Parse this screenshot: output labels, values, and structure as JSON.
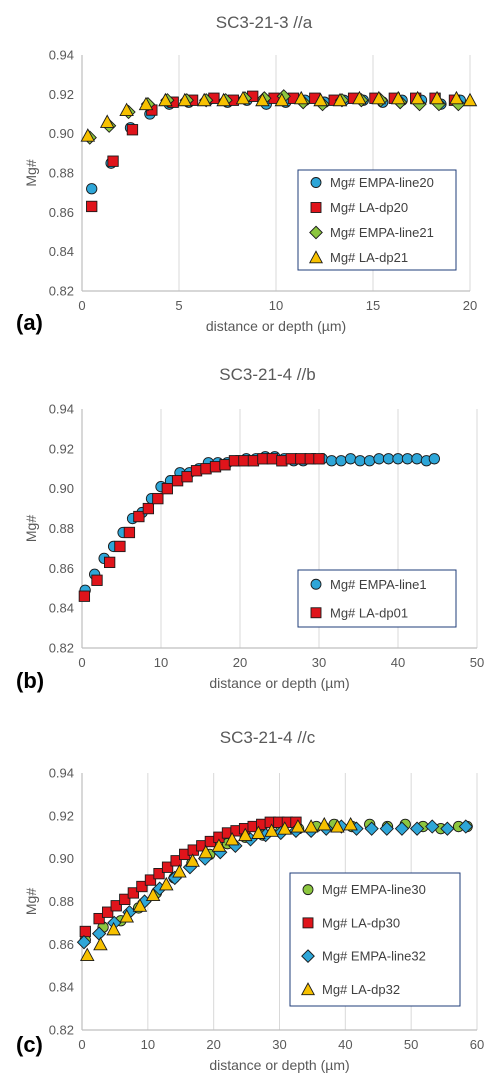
{
  "colors": {
    "grid": "#d9d9d9",
    "axis": "#bfbfbf",
    "empa_circle": "#2ea6d8",
    "la_square": "#e0141b",
    "empa_diamond": "#8cc63f",
    "la_triangle": "#f7c100",
    "legend_border": "#1f3d7a"
  },
  "chart_data": [
    {
      "type": "scatter",
      "title": "SC3-21-3  //a",
      "panel_label": "(a)",
      "xlabel": "distance or depth (µm)",
      "ylabel": "Mg#",
      "xlim": [
        0,
        20
      ],
      "ylim": [
        0.82,
        0.94
      ],
      "xticks": [
        "0",
        "5",
        "10",
        "15",
        "20"
      ],
      "yticks": [
        "0.82",
        "0.84",
        "0.86",
        "0.88",
        "0.90",
        "0.92",
        "0.94"
      ],
      "grid": "vertical",
      "legend_position": "right",
      "series": [
        {
          "name": "Mg# EMPA-line20",
          "marker": "circle",
          "color": "#2ea6d8",
          "x": [
            0.5,
            1.5,
            2.5,
            3.5,
            4.5,
            5.5,
            6.5,
            7.5,
            8.5,
            9.5,
            10.5,
            11.5,
            12.5,
            13.5,
            14.5,
            15.5,
            16.5,
            17.5,
            18.5,
            19.5
          ],
          "y": [
            0.872,
            0.885,
            0.903,
            0.91,
            0.915,
            0.916,
            0.917,
            0.916,
            0.917,
            0.915,
            0.916,
            0.917,
            0.916,
            0.917,
            0.917,
            0.916,
            0.917,
            0.917,
            0.915,
            0.917
          ]
        },
        {
          "name": "Mg# LA-dp20",
          "marker": "square",
          "color": "#e0141b",
          "x": [
            0.5,
            1.6,
            2.6,
            3.6,
            4.7,
            5.7,
            6.8,
            7.8,
            8.8,
            9.9,
            10.9,
            12.0,
            13.0,
            14.0,
            15.1,
            16.1,
            17.2,
            18.2,
            19.2
          ],
          "y": [
            0.863,
            0.886,
            0.902,
            0.912,
            0.916,
            0.917,
            0.918,
            0.917,
            0.919,
            0.918,
            0.918,
            0.918,
            0.917,
            0.918,
            0.918,
            0.918,
            0.918,
            0.918,
            0.917
          ]
        },
        {
          "name": "Mg# EMPA-line21",
          "marker": "diamond",
          "color": "#8cc63f",
          "x": [
            0.4,
            1.4,
            2.4,
            3.4,
            4.4,
            5.4,
            6.4,
            7.4,
            8.4,
            9.4,
            10.4,
            11.4,
            12.4,
            13.4,
            14.4,
            15.4,
            16.4,
            17.4,
            18.4,
            19.4
          ],
          "y": [
            0.898,
            0.904,
            0.911,
            0.915,
            0.917,
            0.917,
            0.917,
            0.917,
            0.918,
            0.918,
            0.919,
            0.916,
            0.915,
            0.917,
            0.917,
            0.917,
            0.916,
            0.915,
            0.915,
            0.915
          ]
        },
        {
          "name": "Mg# LA-dp21",
          "marker": "triangle",
          "color": "#f7c100",
          "x": [
            0.3,
            1.3,
            2.3,
            3.3,
            4.3,
            5.3,
            6.3,
            7.3,
            8.3,
            9.3,
            10.3,
            11.3,
            12.3,
            13.3,
            14.3,
            15.3,
            16.3,
            17.3,
            18.3,
            19.3,
            20.0
          ],
          "y": [
            0.899,
            0.906,
            0.912,
            0.915,
            0.917,
            0.917,
            0.917,
            0.917,
            0.918,
            0.917,
            0.917,
            0.918,
            0.917,
            0.917,
            0.918,
            0.918,
            0.918,
            0.918,
            0.918,
            0.918,
            0.917
          ]
        }
      ]
    },
    {
      "type": "scatter",
      "title": "SC3-21-4  //b",
      "panel_label": "(b)",
      "xlabel": "distance or depth (µm)",
      "ylabel": "Mg#",
      "xlim": [
        0,
        50
      ],
      "ylim": [
        0.82,
        0.94
      ],
      "xticks": [
        "0",
        "10",
        "20",
        "30",
        "40",
        "50"
      ],
      "yticks": [
        "0.82",
        "0.84",
        "0.86",
        "0.88",
        "0.90",
        "0.92",
        "0.94"
      ],
      "grid": "vertical",
      "legend_position": "right",
      "series": [
        {
          "name": "Mg# EMPA-line1",
          "marker": "circle",
          "color": "#2ea6d8",
          "x": [
            0.4,
            1.6,
            2.8,
            4.0,
            5.2,
            6.4,
            7.6,
            8.8,
            10.0,
            11.2,
            12.4,
            13.6,
            14.8,
            16.0,
            17.2,
            18.4,
            19.6,
            20.8,
            22.0,
            23.2,
            24.4,
            25.6,
            26.8,
            28.0,
            29.2,
            30.4,
            31.6,
            32.8,
            34.0,
            35.2,
            36.4,
            37.6,
            38.8,
            40.0,
            41.2,
            42.4,
            43.6,
            44.6
          ],
          "y": [
            0.849,
            0.857,
            0.865,
            0.871,
            0.878,
            0.885,
            0.888,
            0.895,
            0.901,
            0.904,
            0.908,
            0.908,
            0.91,
            0.913,
            0.913,
            0.913,
            0.914,
            0.915,
            0.915,
            0.916,
            0.916,
            0.915,
            0.914,
            0.914,
            0.915,
            0.915,
            0.914,
            0.914,
            0.915,
            0.914,
            0.914,
            0.915,
            0.915,
            0.915,
            0.915,
            0.915,
            0.914,
            0.915
          ]
        },
        {
          "name": "Mg# LA-dp01",
          "marker": "square",
          "color": "#e0141b",
          "x": [
            0.3,
            1.9,
            3.5,
            4.8,
            6.0,
            7.2,
            8.4,
            9.6,
            10.8,
            12.1,
            13.3,
            14.5,
            15.7,
            16.9,
            18.1,
            19.3,
            20.5,
            21.7,
            22.9,
            24.1,
            25.3,
            26.5,
            27.7,
            28.9,
            30.0
          ],
          "y": [
            0.846,
            0.854,
            0.863,
            0.871,
            0.878,
            0.886,
            0.89,
            0.895,
            0.9,
            0.904,
            0.906,
            0.909,
            0.91,
            0.911,
            0.912,
            0.914,
            0.914,
            0.914,
            0.915,
            0.915,
            0.914,
            0.915,
            0.915,
            0.915,
            0.915
          ]
        }
      ]
    },
    {
      "type": "scatter",
      "title": "SC3-21-4  //c",
      "panel_label": "(c)",
      "xlabel": "distance or depth (µm)",
      "ylabel": "Mg#",
      "xlim": [
        0,
        60
      ],
      "ylim": [
        0.82,
        0.94
      ],
      "xticks": [
        "0",
        "10",
        "20",
        "30",
        "40",
        "50",
        "60"
      ],
      "yticks": [
        "0.82",
        "0.84",
        "0.86",
        "0.88",
        "0.90",
        "0.92",
        "0.94"
      ],
      "grid": "vertical",
      "legend_position": "right",
      "series": [
        {
          "name": "Mg# EMPA-line30",
          "marker": "circle",
          "color": "#8cc63f",
          "x": [
            0.5,
            3.2,
            5.9,
            8.6,
            11.3,
            14.0,
            16.7,
            19.4,
            22.1,
            24.8,
            27.5,
            30.2,
            32.9,
            35.6,
            38.3,
            41.0,
            43.7,
            46.4,
            49.1,
            51.8,
            54.5,
            57.2,
            58.5
          ],
          "y": [
            0.862,
            0.868,
            0.871,
            0.877,
            0.884,
            0.891,
            0.898,
            0.902,
            0.907,
            0.91,
            0.911,
            0.913,
            0.914,
            0.915,
            0.916,
            0.915,
            0.916,
            0.915,
            0.916,
            0.915,
            0.914,
            0.915,
            0.915
          ]
        },
        {
          "name": "Mg# LA-dp30",
          "marker": "square",
          "color": "#e0141b",
          "x": [
            0.5,
            2.6,
            3.9,
            5.2,
            6.5,
            7.8,
            9.1,
            10.4,
            11.7,
            13.0,
            14.3,
            15.6,
            16.9,
            18.2,
            19.5,
            20.8,
            22.1,
            23.4,
            24.7,
            26.0,
            27.3,
            28.6,
            29.9,
            31.2,
            32.5
          ],
          "y": [
            0.866,
            0.872,
            0.875,
            0.878,
            0.881,
            0.884,
            0.887,
            0.89,
            0.893,
            0.896,
            0.899,
            0.902,
            0.904,
            0.906,
            0.908,
            0.91,
            0.912,
            0.913,
            0.914,
            0.915,
            0.916,
            0.917,
            0.917,
            0.917,
            0.917
          ]
        },
        {
          "name": "Mg# EMPA-line32",
          "marker": "diamond",
          "color": "#2ea6d8",
          "x": [
            0.3,
            2.6,
            4.9,
            7.2,
            9.5,
            11.8,
            14.1,
            16.4,
            18.7,
            21.0,
            23.3,
            25.6,
            27.9,
            30.2,
            32.5,
            34.8,
            37.1,
            39.4,
            41.7,
            44.0,
            46.3,
            48.6,
            50.9,
            53.2,
            55.5,
            58.3
          ],
          "y": [
            0.861,
            0.865,
            0.87,
            0.875,
            0.88,
            0.886,
            0.891,
            0.896,
            0.9,
            0.903,
            0.906,
            0.909,
            0.911,
            0.912,
            0.913,
            0.913,
            0.914,
            0.915,
            0.914,
            0.914,
            0.914,
            0.914,
            0.914,
            0.915,
            0.914,
            0.915
          ]
        },
        {
          "name": "Mg# LA-dp32",
          "marker": "triangle",
          "color": "#f7c100",
          "x": [
            0.8,
            2.8,
            4.8,
            6.8,
            8.8,
            10.8,
            12.8,
            14.8,
            16.8,
            18.8,
            20.8,
            22.8,
            24.8,
            26.8,
            28.8,
            30.8,
            32.8,
            34.8,
            36.8,
            38.8,
            40.8
          ],
          "y": [
            0.855,
            0.86,
            0.867,
            0.873,
            0.878,
            0.883,
            0.888,
            0.894,
            0.899,
            0.903,
            0.906,
            0.909,
            0.911,
            0.912,
            0.913,
            0.914,
            0.915,
            0.915,
            0.916,
            0.915,
            0.916
          ]
        }
      ]
    }
  ]
}
